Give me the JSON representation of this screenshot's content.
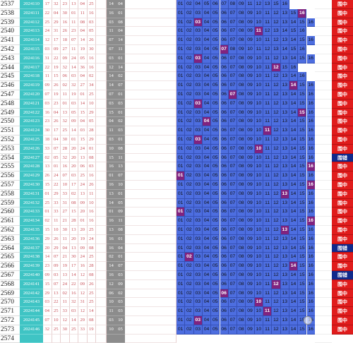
{
  "red_cols": 8,
  "grey_cols": 2,
  "rows": [
    {
      "no": "2537",
      "date": "2024110",
      "red": [
        "17",
        "32",
        "23",
        "13",
        "04",
        "25"
      ],
      "grey": [
        "14",
        "04"
      ],
      "blue": [
        "01",
        "02",
        "04",
        "05",
        "06",
        "07",
        "08",
        "09",
        "11",
        "12",
        "13",
        "15",
        "16"
      ],
      "hit": "",
      "badge": "围中"
    },
    {
      "no": "2538",
      "date": "2024111",
      "red": [
        "22",
        "04",
        "30",
        "01",
        "11",
        "16"
      ],
      "grey": [
        "16",
        "01"
      ],
      "blue": [
        "01",
        "02",
        "03",
        "04",
        "05",
        "06",
        "07",
        "08",
        "09",
        "10",
        "11",
        "12",
        "13",
        "15",
        "16"
      ],
      "hit": "16",
      "badge": "围中"
    },
    {
      "no": "2539",
      "date": "2024112",
      "red": [
        "25",
        "29",
        "16",
        "11",
        "08",
        "03"
      ],
      "grey": [
        "03",
        "08"
      ],
      "blue": [
        "01",
        "02",
        "03",
        "04",
        "05",
        "06",
        "07",
        "08",
        "09",
        "10",
        "11",
        "12",
        "13",
        "14",
        "15",
        "16"
      ],
      "hit": "03",
      "badge": "围中"
    },
    {
      "no": "2540",
      "date": "2024113",
      "red": [
        "24",
        "31",
        "26",
        "23",
        "04",
        "05"
      ],
      "grey": [
        "11",
        "04"
      ],
      "blue": [
        "01",
        "02",
        "03",
        "04",
        "05",
        "06",
        "07",
        "08",
        "09",
        "11",
        "12",
        "13",
        "14",
        "15",
        "16"
      ],
      "hit": "11",
      "badge": "围中"
    },
    {
      "no": "2541",
      "date": "2024114",
      "red": [
        "12",
        "17",
        "18",
        "07",
        "14",
        "26"
      ],
      "grey": [
        "07",
        "14"
      ],
      "blue": [
        "01",
        "02",
        "03",
        "04",
        "05",
        "06",
        "07",
        "08",
        "09",
        "10",
        "11",
        "12",
        "13",
        "14",
        "15",
        "16"
      ],
      "hit": "",
      "badge": "围中"
    },
    {
      "no": "2542",
      "date": "2024115",
      "red": [
        "03",
        "09",
        "27",
        "11",
        "19",
        "30"
      ],
      "grey": [
        "07",
        "11"
      ],
      "blue": [
        "01",
        "02",
        "03",
        "04",
        "05",
        "07",
        "08",
        "09",
        "10",
        "11",
        "12",
        "13",
        "14",
        "15",
        "16"
      ],
      "hit": "07",
      "badge": "围中"
    },
    {
      "no": "2543",
      "date": "2024116",
      "red": [
        "31",
        "22",
        "09",
        "24",
        "05",
        "16"
      ],
      "grey": [
        "03",
        "01"
      ],
      "blue": [
        "01",
        "02",
        "03",
        "04",
        "05",
        "06",
        "07",
        "08",
        "09",
        "10",
        "11",
        "12",
        "13",
        "14",
        "15",
        "16"
      ],
      "hit": "03",
      "badge": "围中"
    },
    {
      "no": "2544",
      "date": "2024117",
      "red": [
        "22",
        "19",
        "32",
        "14",
        "36",
        "16"
      ],
      "grey": [
        "12",
        "14"
      ],
      "blue": [
        "01",
        "02",
        "03",
        "04",
        "05",
        "06",
        "07",
        "08",
        "09",
        "10",
        "11",
        "12",
        "15",
        "16"
      ],
      "hit": "12",
      "badge": "围中"
    },
    {
      "no": "2545",
      "date": "2024118",
      "red": [
        "11",
        "15",
        "06",
        "03",
        "04",
        "02"
      ],
      "grey": [
        "14",
        "02"
      ],
      "blue": [
        "01",
        "02",
        "03",
        "04",
        "05",
        "06",
        "07",
        "08",
        "09",
        "10",
        "11",
        "12",
        "13",
        "14",
        "16"
      ],
      "hit": "",
      "badge": "围中"
    },
    {
      "no": "2546",
      "date": "2024119",
      "red": [
        "09",
        "26",
        "02",
        "32",
        "27",
        "34"
      ],
      "grey": [
        "14",
        "07"
      ],
      "blue": [
        "01",
        "02",
        "03",
        "04",
        "05",
        "06",
        "07",
        "08",
        "09",
        "10",
        "11",
        "12",
        "13",
        "14",
        "15",
        "16"
      ],
      "hit": "14",
      "badge": "围中"
    },
    {
      "no": "2547",
      "date": "2024120",
      "red": [
        "07",
        "19",
        "11",
        "19",
        "01",
        "25"
      ],
      "grey": [
        "07",
        "01"
      ],
      "blue": [
        "01",
        "02",
        "03",
        "04",
        "05",
        "06",
        "07",
        "08",
        "09",
        "10",
        "11",
        "12",
        "13",
        "14",
        "15",
        "16"
      ],
      "hit": "07",
      "badge": "围中"
    },
    {
      "no": "2548",
      "date": "2024121",
      "red": [
        "03",
        "23",
        "01",
        "03",
        "14",
        "10"
      ],
      "grey": [
        "03",
        "03"
      ],
      "blue": [
        "01",
        "02",
        "03",
        "04",
        "05",
        "06",
        "07",
        "08",
        "09",
        "10",
        "11",
        "12",
        "13",
        "14",
        "15",
        "16"
      ],
      "hit": "03",
      "badge": "围中"
    },
    {
      "no": "2549",
      "date": "2024122",
      "red": [
        "16",
        "04",
        "13",
        "05",
        "15",
        "29"
      ],
      "grey": [
        "15",
        "01"
      ],
      "blue": [
        "01",
        "02",
        "03",
        "04",
        "05",
        "06",
        "07",
        "08",
        "09",
        "10",
        "11",
        "12",
        "13",
        "14",
        "15",
        "16"
      ],
      "hit": "15",
      "badge": "围中"
    },
    {
      "no": "2550",
      "date": "2024123",
      "red": [
        "23",
        "26",
        "32",
        "09",
        "04",
        "05"
      ],
      "grey": [
        "04",
        "02"
      ],
      "blue": [
        "01",
        "02",
        "03",
        "04",
        "05",
        "06",
        "07",
        "08",
        "09",
        "10",
        "11",
        "12",
        "13",
        "14",
        "15",
        "16"
      ],
      "hit": "04",
      "badge": "围中"
    },
    {
      "no": "2551",
      "date": "2024124",
      "red": [
        "30",
        "17",
        "25",
        "14",
        "03",
        "28"
      ],
      "grey": [
        "11",
        "03"
      ],
      "blue": [
        "01",
        "02",
        "03",
        "04",
        "05",
        "06",
        "07",
        "08",
        "09",
        "10",
        "11",
        "12",
        "13",
        "14",
        "15",
        "16"
      ],
      "hit": "11",
      "badge": "围中"
    },
    {
      "no": "2552",
      "date": "2024125",
      "red": [
        "18",
        "04",
        "30",
        "01",
        "15",
        "29"
      ],
      "grey": [
        "03",
        "01"
      ],
      "blue": [
        "01",
        "02",
        "03",
        "04",
        "05",
        "06",
        "07",
        "08",
        "09",
        "10",
        "11",
        "12",
        "13",
        "14",
        "15",
        "16"
      ],
      "hit": "03",
      "badge": "围中"
    },
    {
      "no": "2553",
      "date": "2024126",
      "red": [
        "33",
        "07",
        "28",
        "20",
        "24",
        "01"
      ],
      "grey": [
        "10",
        "08"
      ],
      "blue": [
        "01",
        "02",
        "03",
        "04",
        "05",
        "06",
        "07",
        "08",
        "09",
        "10",
        "11",
        "12",
        "13",
        "14",
        "15",
        "16"
      ],
      "hit": "10",
      "badge": "围中"
    },
    {
      "no": "2554",
      "date": "2024127",
      "red": [
        "02",
        "05",
        "32",
        "20",
        "13",
        "08"
      ],
      "grey": [
        "15",
        "11"
      ],
      "blue": [
        "01",
        "02",
        "03",
        "04",
        "05",
        "06",
        "07",
        "08",
        "09",
        "10",
        "11",
        "12",
        "13",
        "14",
        "15",
        "16"
      ],
      "hit": "",
      "badge": "围错"
    },
    {
      "no": "2555",
      "date": "2024128",
      "red": [
        "13",
        "01",
        "16",
        "20",
        "06",
        "03"
      ],
      "grey": [
        "16",
        "13"
      ],
      "blue": [
        "01",
        "02",
        "03",
        "04",
        "05",
        "06",
        "07",
        "08",
        "09",
        "10",
        "11",
        "12",
        "13",
        "14",
        "15",
        "16"
      ],
      "hit": "16",
      "badge": "围中"
    },
    {
      "no": "2556",
      "date": "2024129",
      "red": [
        "26",
        "24",
        "07",
        "03",
        "25",
        "16"
      ],
      "grey": [
        "01",
        "07"
      ],
      "blue": [
        "01",
        "02",
        "03",
        "04",
        "05",
        "06",
        "07",
        "08",
        "09",
        "10",
        "11",
        "12",
        "13",
        "14",
        "15",
        "16"
      ],
      "hit": "01",
      "badge": "围中"
    },
    {
      "no": "2557",
      "date": "2024130",
      "red": [
        "15",
        "22",
        "10",
        "17",
        "24",
        "26"
      ],
      "grey": [
        "16",
        "10"
      ],
      "blue": [
        "01",
        "02",
        "03",
        "04",
        "05",
        "06",
        "07",
        "08",
        "09",
        "10",
        "11",
        "12",
        "13",
        "14",
        "15",
        "16"
      ],
      "hit": "16",
      "badge": "围中"
    },
    {
      "no": "2558",
      "date": "2024131",
      "red": [
        "01",
        "29",
        "33",
        "02",
        "13",
        "11"
      ],
      "grey": [
        "13",
        "01"
      ],
      "blue": [
        "01",
        "02",
        "03",
        "04",
        "05",
        "06",
        "07",
        "08",
        "09",
        "10",
        "11",
        "12",
        "13",
        "14",
        "15",
        "16"
      ],
      "hit": "13",
      "badge": "围中"
    },
    {
      "no": "2559",
      "date": "2024132",
      "red": [
        "25",
        "33",
        "31",
        "08",
        "09",
        "10"
      ],
      "grey": [
        "14",
        "05"
      ],
      "blue": [
        "01",
        "02",
        "03",
        "04",
        "05",
        "06",
        "07",
        "08",
        "09",
        "10",
        "11",
        "12",
        "13",
        "14",
        "15",
        "16"
      ],
      "hit": "",
      "badge": "围中"
    },
    {
      "no": "2560",
      "date": "2024133",
      "red": [
        "01",
        "33",
        "27",
        "15",
        "20",
        "16"
      ],
      "grey": [
        "01",
        "09"
      ],
      "blue": [
        "01",
        "02",
        "03",
        "04",
        "05",
        "06",
        "07",
        "08",
        "09",
        "10",
        "11",
        "12",
        "13",
        "14",
        "15",
        "16"
      ],
      "hit": "01",
      "badge": "围中"
    },
    {
      "no": "2561",
      "date": "2024134",
      "red": [
        "02",
        "11",
        "21",
        "28",
        "01",
        "16"
      ],
      "grey": [
        "16",
        "11"
      ],
      "blue": [
        "01",
        "02",
        "03",
        "04",
        "05",
        "06",
        "07",
        "08",
        "09",
        "10",
        "11",
        "12",
        "13",
        "14",
        "15",
        "16"
      ],
      "hit": "16",
      "badge": "围中"
    },
    {
      "no": "2562",
      "date": "2024135",
      "red": [
        "15",
        "10",
        "30",
        "13",
        "20",
        "25"
      ],
      "grey": [
        "13",
        "08"
      ],
      "blue": [
        "01",
        "02",
        "03",
        "04",
        "05",
        "06",
        "07",
        "08",
        "09",
        "10",
        "11",
        "12",
        "13",
        "14",
        "15",
        "16"
      ],
      "hit": "13",
      "badge": "围中"
    },
    {
      "no": "2563",
      "date": "2024136",
      "red": [
        "29",
        "26",
        "11",
        "20",
        "19",
        "24"
      ],
      "grey": [
        "16",
        "01"
      ],
      "blue": [
        "01",
        "02",
        "03",
        "04",
        "05",
        "06",
        "07",
        "08",
        "09",
        "10",
        "11",
        "12",
        "13",
        "14",
        "15",
        "16"
      ],
      "hit": "",
      "badge": "围中"
    },
    {
      "no": "2564",
      "date": "2024137",
      "red": [
        "20",
        "29",
        "04",
        "13",
        "09",
        "08"
      ],
      "grey": [
        "16",
        "04"
      ],
      "blue": [
        "01",
        "02",
        "03",
        "04",
        "05",
        "06",
        "07",
        "08",
        "09",
        "10",
        "11",
        "12",
        "13",
        "14",
        "15",
        "16"
      ],
      "hit": "",
      "badge": "围错"
    },
    {
      "no": "2565",
      "date": "2024138",
      "red": [
        "14",
        "07",
        "21",
        "30",
        "24",
        "25"
      ],
      "grey": [
        "02",
        "01"
      ],
      "blue": [
        "01",
        "02",
        "03",
        "04",
        "05",
        "06",
        "07",
        "08",
        "09",
        "10",
        "11",
        "12",
        "13",
        "14",
        "15",
        "16"
      ],
      "hit": "02",
      "badge": "围中"
    },
    {
      "no": "2566",
      "date": "2024139",
      "red": [
        "23",
        "09",
        "19",
        "17",
        "16",
        "28"
      ],
      "grey": [
        "14",
        "07"
      ],
      "blue": [
        "01",
        "02",
        "03",
        "04",
        "05",
        "06",
        "07",
        "08",
        "09",
        "10",
        "11",
        "12",
        "13",
        "14",
        "15",
        "16"
      ],
      "hit": "14",
      "badge": "围中"
    },
    {
      "no": "2567",
      "date": "2024140",
      "red": [
        "09",
        "03",
        "13",
        "14",
        "12",
        "08"
      ],
      "grey": [
        "16",
        "03"
      ],
      "blue": [
        "01",
        "02",
        "03",
        "04",
        "05",
        "06",
        "07",
        "08",
        "09",
        "10",
        "11",
        "12",
        "13",
        "14",
        "15",
        "16"
      ],
      "hit": "",
      "badge": "围错"
    },
    {
      "no": "2568",
      "date": "2024141",
      "red": [
        "15",
        "07",
        "24",
        "22",
        "09",
        "26"
      ],
      "grey": [
        "12",
        "09"
      ],
      "blue": [
        "01",
        "02",
        "03",
        "04",
        "05",
        "06",
        "07",
        "08",
        "09",
        "10",
        "11",
        "12",
        "13",
        "14",
        "15",
        "16"
      ],
      "hit": "12",
      "badge": "围中"
    },
    {
      "no": "2569",
      "date": "2024142",
      "red": [
        "29",
        "13",
        "02",
        "16",
        "12",
        "25"
      ],
      "grey": [
        "06",
        "02"
      ],
      "blue": [
        "01",
        "02",
        "03",
        "04",
        "05",
        "06",
        "07",
        "08",
        "09",
        "10",
        "11",
        "12",
        "13",
        "14",
        "15",
        "16"
      ],
      "hit": "06",
      "badge": "围中"
    },
    {
      "no": "2570",
      "date": "2024143",
      "red": [
        "03",
        "22",
        "11",
        "32",
        "31",
        "25"
      ],
      "grey": [
        "10",
        "03"
      ],
      "blue": [
        "01",
        "02",
        "03",
        "04",
        "05",
        "06",
        "07",
        "08",
        "09",
        "10",
        "11",
        "12",
        "13",
        "14",
        "15",
        "16"
      ],
      "hit": "10",
      "badge": "围中"
    },
    {
      "no": "2571",
      "date": "2024144",
      "red": [
        "04",
        "25",
        "33",
        "03",
        "12",
        "14"
      ],
      "grey": [
        "11",
        "03"
      ],
      "blue": [
        "01",
        "02",
        "03",
        "04",
        "05",
        "06",
        "07",
        "08",
        "09",
        "10",
        "11",
        "12",
        "13",
        "14",
        "15",
        "16"
      ],
      "hit": "11",
      "badge": "围中"
    },
    {
      "no": "2572",
      "date": "2024145",
      "red": [
        "07",
        "10",
        "12",
        "14",
        "29",
        "08"
      ],
      "grey": [
        "03",
        "10"
      ],
      "blue": [
        "01",
        "02",
        "03",
        "04",
        "05",
        "06",
        "07",
        "08",
        "09",
        "10",
        "11",
        "12",
        "13",
        "14",
        "15",
        "16"
      ],
      "hit": "03",
      "badge": "围中"
    },
    {
      "no": "2573",
      "date": "2024146",
      "red": [
        "32",
        "25",
        "30",
        "25",
        "33",
        "19"
      ],
      "grey": [
        "10",
        "05"
      ],
      "blue": [
        "01",
        "02",
        "03",
        "04",
        "05",
        "06",
        "07",
        "08",
        "09",
        "10",
        "11",
        "12",
        "13",
        "14",
        "15",
        "16"
      ],
      "hit": "",
      "badge": "围中"
    },
    {
      "no": "2574",
      "date": "",
      "red": [
        "",
        "",
        "",
        "",
        "",
        ""
      ],
      "grey": [
        "",
        ""
      ],
      "blue": [],
      "hit": "",
      "badge": ""
    }
  ]
}
